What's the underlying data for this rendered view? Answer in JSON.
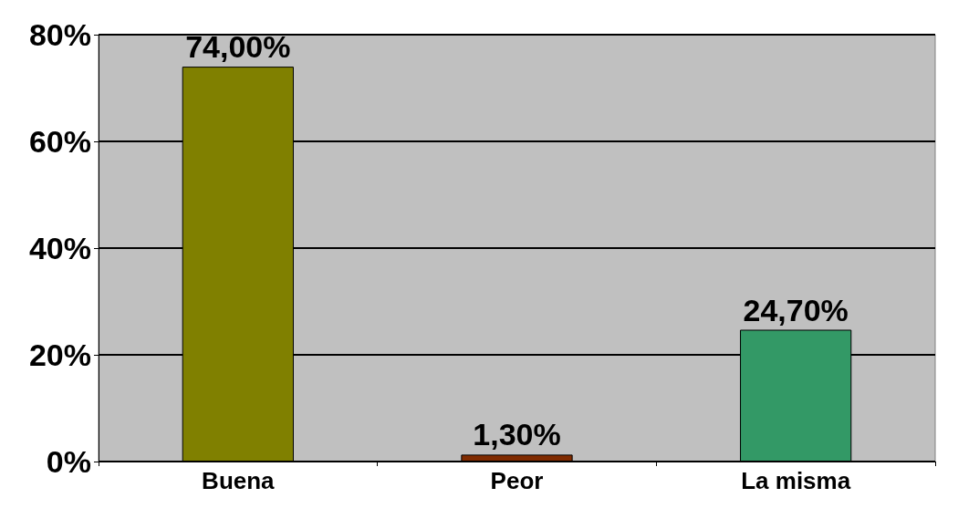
{
  "chart_data": {
    "type": "bar",
    "categories": [
      "Buena",
      "Peor",
      "La misma"
    ],
    "values": [
      74.0,
      1.3,
      24.7
    ],
    "colors": [
      "#808000",
      "#802b00",
      "#339966"
    ],
    "value_labels": [
      "74,00%",
      "1,30%",
      "24,70%"
    ],
    "ylim": [
      0,
      80
    ],
    "yticks": [
      {
        "value": 0,
        "label": "0%"
      },
      {
        "value": 20,
        "label": "20%"
      },
      {
        "value": 40,
        "label": "40%"
      },
      {
        "value": 60,
        "label": "60%"
      },
      {
        "value": 80,
        "label": "80%"
      }
    ],
    "grid": "y"
  }
}
